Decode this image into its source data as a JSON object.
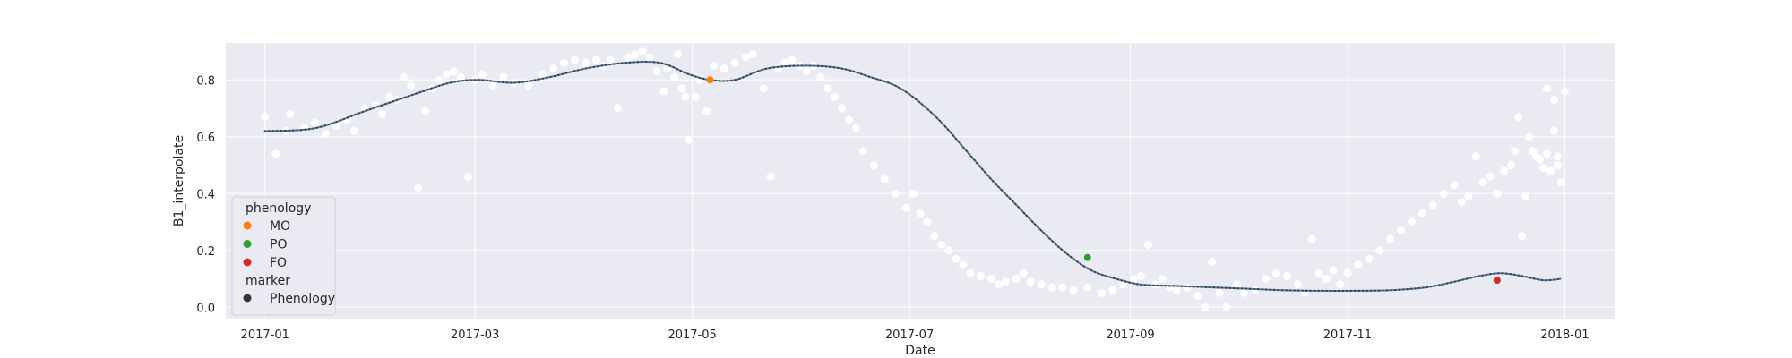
{
  "chart_data": {
    "type": "scatter",
    "title": "",
    "xlabel": "Date",
    "ylabel": "B1_interpolate",
    "x_axis": {
      "type": "date",
      "range": [
        "2016-12-21",
        "2018-01-15"
      ],
      "ticks": [
        "2017-01-01",
        "2017-03-01",
        "2017-05-01",
        "2017-07-01",
        "2017-09-01",
        "2017-11-01",
        "2018-01-01"
      ],
      "tick_labels": [
        "2017-01",
        "2017-03",
        "2017-05",
        "2017-07",
        "2017-09",
        "2017-11",
        "2018-01"
      ]
    },
    "y_axis": {
      "range": [
        -0.04,
        0.93
      ],
      "ticks": [
        0.0,
        0.2,
        0.4,
        0.6,
        0.8
      ],
      "tick_labels": [
        "0.0",
        "0.2",
        "0.4",
        "0.6",
        "0.8"
      ]
    },
    "grid": true,
    "background": "#eaeaf2",
    "series": [
      {
        "kind": "scatter",
        "color": "#ffffff",
        "points": [
          [
            "2017-01-01",
            0.67
          ],
          [
            "2017-01-04",
            0.54
          ],
          [
            "2017-01-07",
            0.62
          ],
          [
            "2017-01-08",
            0.68
          ],
          [
            "2017-01-12",
            0.63
          ],
          [
            "2017-01-15",
            0.65
          ],
          [
            "2017-01-18",
            0.61
          ],
          [
            "2017-01-21",
            0.64
          ],
          [
            "2017-01-24",
            0.66
          ],
          [
            "2017-01-26",
            0.62
          ],
          [
            "2017-01-29",
            0.7
          ],
          [
            "2017-02-01",
            0.71
          ],
          [
            "2017-02-03",
            0.68
          ],
          [
            "2017-02-05",
            0.74
          ],
          [
            "2017-02-07",
            0.73
          ],
          [
            "2017-02-09",
            0.81
          ],
          [
            "2017-02-11",
            0.78
          ],
          [
            "2017-02-13",
            0.42
          ],
          [
            "2017-02-15",
            0.69
          ],
          [
            "2017-02-17",
            0.77
          ],
          [
            "2017-02-19",
            0.8
          ],
          [
            "2017-02-21",
            0.82
          ],
          [
            "2017-02-23",
            0.83
          ],
          [
            "2017-02-25",
            0.81
          ],
          [
            "2017-02-27",
            0.46
          ],
          [
            "2017-03-01",
            0.8
          ],
          [
            "2017-03-03",
            0.82
          ],
          [
            "2017-03-06",
            0.78
          ],
          [
            "2017-03-09",
            0.81
          ],
          [
            "2017-03-12",
            0.79
          ],
          [
            "2017-03-16",
            0.78
          ],
          [
            "2017-03-20",
            0.82
          ],
          [
            "2017-03-23",
            0.84
          ],
          [
            "2017-03-26",
            0.86
          ],
          [
            "2017-03-29",
            0.87
          ],
          [
            "2017-04-01",
            0.86
          ],
          [
            "2017-04-04",
            0.87
          ],
          [
            "2017-04-06",
            0.85
          ],
          [
            "2017-04-08",
            0.87
          ],
          [
            "2017-04-10",
            0.7
          ],
          [
            "2017-04-13",
            0.88
          ],
          [
            "2017-04-15",
            0.89
          ],
          [
            "2017-04-17",
            0.9
          ],
          [
            "2017-04-19",
            0.88
          ],
          [
            "2017-04-21",
            0.83
          ],
          [
            "2017-04-23",
            0.76
          ],
          [
            "2017-04-24",
            0.84
          ],
          [
            "2017-04-26",
            0.81
          ],
          [
            "2017-04-27",
            0.89
          ],
          [
            "2017-04-28",
            0.77
          ],
          [
            "2017-04-29",
            0.74
          ],
          [
            "2017-04-30",
            0.59
          ],
          [
            "2017-05-02",
            0.74
          ],
          [
            "2017-05-03",
            0.8
          ],
          [
            "2017-05-05",
            0.69
          ],
          [
            "2017-05-07",
            0.85
          ],
          [
            "2017-05-10",
            0.84
          ],
          [
            "2017-05-13",
            0.86
          ],
          [
            "2017-05-16",
            0.88
          ],
          [
            "2017-05-18",
            0.89
          ],
          [
            "2017-05-21",
            0.77
          ],
          [
            "2017-05-23",
            0.46
          ],
          [
            "2017-05-25",
            0.84
          ],
          [
            "2017-05-27",
            0.86
          ],
          [
            "2017-05-29",
            0.87
          ],
          [
            "2017-05-31",
            0.85
          ],
          [
            "2017-06-02",
            0.83
          ],
          [
            "2017-06-04",
            0.85
          ],
          [
            "2017-06-06",
            0.81
          ],
          [
            "2017-06-08",
            0.77
          ],
          [
            "2017-06-10",
            0.74
          ],
          [
            "2017-06-12",
            0.7
          ],
          [
            "2017-06-14",
            0.66
          ],
          [
            "2017-06-16",
            0.63
          ],
          [
            "2017-06-18",
            0.55
          ],
          [
            "2017-06-21",
            0.5
          ],
          [
            "2017-06-24",
            0.45
          ],
          [
            "2017-06-27",
            0.4
          ],
          [
            "2017-06-30",
            0.35
          ],
          [
            "2017-07-02",
            0.4
          ],
          [
            "2017-07-04",
            0.33
          ],
          [
            "2017-07-06",
            0.3
          ],
          [
            "2017-07-08",
            0.25
          ],
          [
            "2017-07-10",
            0.22
          ],
          [
            "2017-07-12",
            0.2
          ],
          [
            "2017-07-14",
            0.17
          ],
          [
            "2017-07-16",
            0.15
          ],
          [
            "2017-07-18",
            0.12
          ],
          [
            "2017-07-21",
            0.11
          ],
          [
            "2017-07-24",
            0.1
          ],
          [
            "2017-07-26",
            0.08
          ],
          [
            "2017-07-28",
            0.09
          ],
          [
            "2017-07-31",
            0.1
          ],
          [
            "2017-08-02",
            0.12
          ],
          [
            "2017-08-04",
            0.09
          ],
          [
            "2017-08-07",
            0.08
          ],
          [
            "2017-08-10",
            0.07
          ],
          [
            "2017-08-13",
            0.07
          ],
          [
            "2017-08-16",
            0.06
          ],
          [
            "2017-08-20",
            0.07
          ],
          [
            "2017-08-24",
            0.05
          ],
          [
            "2017-08-27",
            0.06
          ],
          [
            "2017-08-30",
            0.08
          ],
          [
            "2017-09-02",
            0.1
          ],
          [
            "2017-09-04",
            0.11
          ],
          [
            "2017-09-06",
            0.22
          ],
          [
            "2017-09-08",
            0.08
          ],
          [
            "2017-09-10",
            0.1
          ],
          [
            "2017-09-12",
            0.07
          ],
          [
            "2017-09-14",
            0.06
          ],
          [
            "2017-09-17",
            0.07
          ],
          [
            "2017-09-20",
            0.04
          ],
          [
            "2017-09-22",
            0.0
          ],
          [
            "2017-09-24",
            0.16
          ],
          [
            "2017-09-26",
            0.05
          ],
          [
            "2017-09-28",
            0.0
          ],
          [
            "2017-10-01",
            0.08
          ],
          [
            "2017-10-03",
            0.05
          ],
          [
            "2017-10-06",
            0.06
          ],
          [
            "2017-10-09",
            0.1
          ],
          [
            "2017-10-12",
            0.12
          ],
          [
            "2017-10-15",
            0.11
          ],
          [
            "2017-10-18",
            0.08
          ],
          [
            "2017-10-20",
            0.05
          ],
          [
            "2017-10-22",
            0.24
          ],
          [
            "2017-10-24",
            0.12
          ],
          [
            "2017-10-26",
            0.1
          ],
          [
            "2017-10-28",
            0.13
          ],
          [
            "2017-10-30",
            0.08
          ],
          [
            "2017-11-01",
            0.12
          ],
          [
            "2017-11-04",
            0.15
          ],
          [
            "2017-11-07",
            0.17
          ],
          [
            "2017-11-10",
            0.2
          ],
          [
            "2017-11-13",
            0.24
          ],
          [
            "2017-11-16",
            0.27
          ],
          [
            "2017-11-19",
            0.3
          ],
          [
            "2017-11-22",
            0.33
          ],
          [
            "2017-11-25",
            0.36
          ],
          [
            "2017-11-28",
            0.4
          ],
          [
            "2017-12-01",
            0.43
          ],
          [
            "2017-12-03",
            0.37
          ],
          [
            "2017-12-05",
            0.39
          ],
          [
            "2017-12-07",
            0.53
          ],
          [
            "2017-12-09",
            0.44
          ],
          [
            "2017-12-11",
            0.46
          ],
          [
            "2017-12-13",
            0.4
          ],
          [
            "2017-12-15",
            0.48
          ],
          [
            "2017-12-17",
            0.5
          ],
          [
            "2017-12-19",
            0.67
          ],
          [
            "2017-12-20",
            0.25
          ],
          [
            "2017-12-21",
            0.39
          ],
          [
            "2017-12-23",
            0.55
          ],
          [
            "2017-12-25",
            0.52
          ],
          [
            "2017-12-27",
            0.54
          ],
          [
            "2017-12-28",
            0.48
          ],
          [
            "2017-12-29",
            0.62
          ],
          [
            "2017-12-30",
            0.5
          ],
          [
            "2017-12-31",
            0.44
          ],
          [
            "2018-01-01",
            0.76
          ],
          [
            "2017-12-18",
            0.55
          ],
          [
            "2017-12-22",
            0.6
          ],
          [
            "2017-12-24",
            0.53
          ],
          [
            "2017-12-26",
            0.49
          ],
          [
            "2017-12-27",
            0.77
          ],
          [
            "2017-12-29",
            0.73
          ],
          [
            "2017-12-30",
            0.53
          ]
        ]
      },
      {
        "kind": "line",
        "color": "#5b7791",
        "dot_color": "#2c3e50",
        "points": [
          [
            "2017-01-01",
            0.62
          ],
          [
            "2017-01-15",
            0.63
          ],
          [
            "2017-01-29",
            0.69
          ],
          [
            "2017-02-12",
            0.75
          ],
          [
            "2017-02-22",
            0.79
          ],
          [
            "2017-03-02",
            0.8
          ],
          [
            "2017-03-12",
            0.79
          ],
          [
            "2017-03-22",
            0.81
          ],
          [
            "2017-04-01",
            0.84
          ],
          [
            "2017-04-12",
            0.86
          ],
          [
            "2017-04-22",
            0.86
          ],
          [
            "2017-04-30",
            0.82
          ],
          [
            "2017-05-06",
            0.8
          ],
          [
            "2017-05-13",
            0.8
          ],
          [
            "2017-05-22",
            0.84
          ],
          [
            "2017-06-02",
            0.85
          ],
          [
            "2017-06-12",
            0.84
          ],
          [
            "2017-06-20",
            0.81
          ],
          [
            "2017-06-27",
            0.78
          ],
          [
            "2017-07-03",
            0.73
          ],
          [
            "2017-07-10",
            0.65
          ],
          [
            "2017-07-17",
            0.55
          ],
          [
            "2017-07-24",
            0.45
          ],
          [
            "2017-07-31",
            0.36
          ],
          [
            "2017-08-07",
            0.27
          ],
          [
            "2017-08-14",
            0.19
          ],
          [
            "2017-08-21",
            0.13
          ],
          [
            "2017-08-28",
            0.1
          ],
          [
            "2017-09-04",
            0.08
          ],
          [
            "2017-09-14",
            0.075
          ],
          [
            "2017-09-24",
            0.07
          ],
          [
            "2017-10-04",
            0.065
          ],
          [
            "2017-10-14",
            0.06
          ],
          [
            "2017-10-24",
            0.058
          ],
          [
            "2017-11-03",
            0.058
          ],
          [
            "2017-11-13",
            0.06
          ],
          [
            "2017-11-23",
            0.07
          ],
          [
            "2017-12-01",
            0.09
          ],
          [
            "2017-12-08",
            0.11
          ],
          [
            "2017-12-14",
            0.12
          ],
          [
            "2017-12-20",
            0.11
          ],
          [
            "2017-12-26",
            0.095
          ],
          [
            "2017-12-31",
            0.1
          ]
        ]
      },
      {
        "kind": "phenology",
        "marker": "Phenology",
        "points": [
          {
            "label": "MO",
            "date": "2017-05-06",
            "value": 0.8,
            "color": "#ff7f0e"
          },
          {
            "label": "PO",
            "date": "2017-08-20",
            "value": 0.175,
            "color": "#2ca02c"
          },
          {
            "label": "FO",
            "date": "2017-12-13",
            "value": 0.095,
            "color": "#d62728"
          }
        ]
      }
    ],
    "legend": {
      "placement": "lower-left",
      "title": "phenology",
      "entries": [
        {
          "label": "MO",
          "color": "#ff7f0e"
        },
        {
          "label": "PO",
          "color": "#2ca02c"
        },
        {
          "label": "FO",
          "color": "#d62728"
        }
      ],
      "marker_title": "marker",
      "marker_entries": [
        {
          "label": "Phenology",
          "color": "#333333"
        }
      ]
    }
  }
}
